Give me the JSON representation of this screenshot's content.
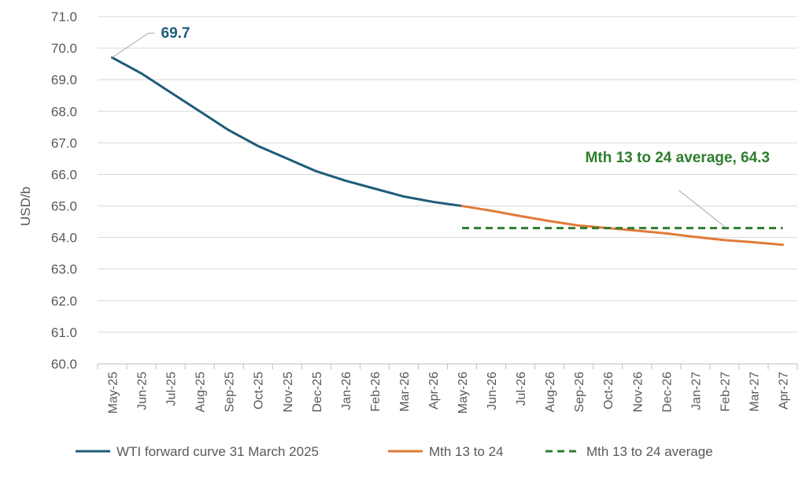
{
  "chart_data": {
    "type": "line",
    "title": "",
    "xlabel": "",
    "ylabel": "USD/b",
    "ylim": [
      60.0,
      71.0
    ],
    "y_ticks": [
      "60.0",
      "61.0",
      "62.0",
      "63.0",
      "64.0",
      "65.0",
      "66.0",
      "67.0",
      "68.0",
      "69.0",
      "70.0",
      "71.0"
    ],
    "grid": true,
    "legend_position": "bottom",
    "categories": [
      "May-25",
      "Jun-25",
      "Jul-25",
      "Aug-25",
      "Sep-25",
      "Oct-25",
      "Nov-25",
      "Dec-25",
      "Jan-26",
      "Feb-26",
      "Mar-26",
      "Apr-26",
      "May-26",
      "Jun-26",
      "Jul-26",
      "Aug-26",
      "Sep-26",
      "Oct-26",
      "Nov-26",
      "Dec-26",
      "Jan-27",
      "Feb-27",
      "Mar-27",
      "Apr-27"
    ],
    "series": [
      {
        "name": "WTI forward curve 31 March 2025",
        "color": "#1f5c7a",
        "style": "solid",
        "values": [
          69.7,
          69.2,
          68.6,
          68.0,
          67.4,
          66.9,
          66.5,
          66.1,
          65.8,
          65.55,
          65.3,
          65.13,
          65.0,
          null,
          null,
          null,
          null,
          null,
          null,
          null,
          null,
          null,
          null,
          null
        ]
      },
      {
        "name": "Mth 13 to 24",
        "color": "#e07b39",
        "style": "solid",
        "values": [
          null,
          null,
          null,
          null,
          null,
          null,
          null,
          null,
          null,
          null,
          null,
          null,
          65.0,
          64.85,
          64.68,
          64.52,
          64.38,
          64.3,
          64.22,
          64.13,
          64.02,
          63.92,
          63.85,
          63.77
        ]
      },
      {
        "name": "Mth 13 to 24 average",
        "color": "#2e7d2e",
        "style": "dashed",
        "values": [
          null,
          null,
          null,
          null,
          null,
          null,
          null,
          null,
          null,
          null,
          null,
          null,
          64.3,
          64.3,
          64.3,
          64.3,
          64.3,
          64.3,
          64.3,
          64.3,
          64.3,
          64.3,
          64.3,
          64.3
        ]
      }
    ],
    "annotations": [
      {
        "text": "69.7",
        "color": "#1f5c7a",
        "x": "May-25",
        "y": 69.7
      },
      {
        "text": "Mth 13 to 24 average,  64.3",
        "color": "#2e7d2e",
        "x": "Feb-27",
        "y": 64.3
      }
    ]
  }
}
